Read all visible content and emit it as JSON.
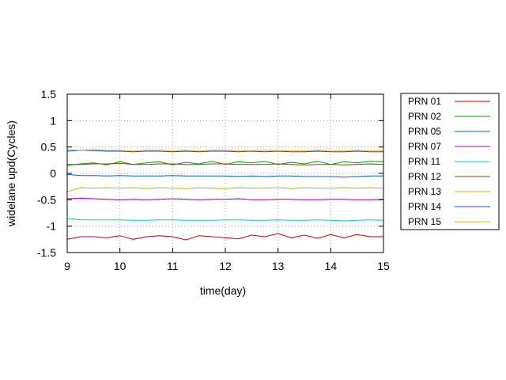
{
  "chart_data": {
    "type": "line",
    "title": "",
    "xlabel": "time(day)",
    "ylabel": "widelane upd(Cycles)",
    "xlim": [
      9,
      15
    ],
    "ylim": [
      -1.5,
      1.5
    ],
    "x_ticks": [
      "9",
      "10",
      "11",
      "12",
      "13",
      "14",
      "15"
    ],
    "y_ticks": [
      "1.5",
      "1",
      "0.5",
      "0",
      "-0.5",
      "-1",
      "-1.5"
    ],
    "grid": true,
    "legend_position": "outside-right",
    "x": [
      9.0,
      9.25,
      9.5,
      9.75,
      10.0,
      10.25,
      10.5,
      10.75,
      11.0,
      11.25,
      11.5,
      11.75,
      12.0,
      12.25,
      12.5,
      12.75,
      13.0,
      13.25,
      13.5,
      13.75,
      14.0,
      14.25,
      14.5,
      14.75,
      15.0
    ],
    "series": [
      {
        "name": "PRN 01",
        "color": "#cc0000",
        "values": [
          -1.25,
          -1.2,
          -1.2,
          -1.22,
          -1.18,
          -1.25,
          -1.2,
          -1.18,
          -1.2,
          -1.26,
          -1.18,
          -1.2,
          -1.22,
          -1.24,
          -1.17,
          -1.2,
          -1.14,
          -1.22,
          -1.17,
          -1.23,
          -1.16,
          -1.22,
          -1.16,
          -1.2,
          -1.2
        ]
      },
      {
        "name": "PRN 02",
        "color": "#00a000",
        "values": [
          0.15,
          0.18,
          0.2,
          0.16,
          0.22,
          0.17,
          0.2,
          0.22,
          0.16,
          0.21,
          0.18,
          0.23,
          0.17,
          0.22,
          0.2,
          0.23,
          0.17,
          0.21,
          0.18,
          0.23,
          0.17,
          0.22,
          0.2,
          0.23,
          0.22
        ]
      },
      {
        "name": "PRN 05",
        "color": "#0060dd",
        "values": [
          -0.02,
          -0.04,
          -0.04,
          -0.05,
          -0.04,
          -0.05,
          -0.05,
          -0.05,
          -0.04,
          -0.05,
          -0.05,
          -0.05,
          -0.05,
          -0.06,
          -0.05,
          -0.06,
          -0.05,
          -0.05,
          -0.06,
          -0.06,
          -0.06,
          -0.07,
          -0.06,
          -0.05,
          -0.05
        ]
      },
      {
        "name": "PRN 07",
        "color": "#a000c0",
        "values": [
          -0.48,
          -0.47,
          -0.48,
          -0.49,
          -0.5,
          -0.49,
          -0.5,
          -0.49,
          -0.48,
          -0.49,
          -0.5,
          -0.49,
          -0.49,
          -0.48,
          -0.5,
          -0.5,
          -0.49,
          -0.49,
          -0.5,
          -0.5,
          -0.49,
          -0.49,
          -0.5,
          -0.5,
          -0.49
        ]
      },
      {
        "name": "PRN 11",
        "color": "#00cccc",
        "values": [
          -0.85,
          -0.88,
          -0.88,
          -0.88,
          -0.88,
          -0.89,
          -0.89,
          -0.88,
          -0.88,
          -0.89,
          -0.89,
          -0.89,
          -0.88,
          -0.88,
          -0.89,
          -0.89,
          -0.88,
          -0.89,
          -0.89,
          -0.88,
          -0.89,
          -0.9,
          -0.89,
          -0.88,
          -0.89
        ]
      },
      {
        "name": "PRN 12",
        "color": "#a04000",
        "values": [
          0.17,
          0.17,
          0.18,
          0.18,
          0.19,
          0.17,
          0.17,
          0.18,
          0.18,
          0.17,
          0.17,
          0.18,
          0.18,
          0.17,
          0.17,
          0.17,
          0.18,
          0.17,
          0.16,
          0.17,
          0.17,
          0.16,
          0.17,
          0.18,
          0.17
        ]
      },
      {
        "name": "PRN 13",
        "color": "#bbbb00",
        "values": [
          -0.35,
          -0.27,
          -0.28,
          -0.27,
          -0.28,
          -0.27,
          -0.29,
          -0.27,
          -0.28,
          -0.29,
          -0.27,
          -0.28,
          -0.29,
          -0.27,
          -0.28,
          -0.28,
          -0.27,
          -0.29,
          -0.27,
          -0.28,
          -0.28,
          -0.27,
          -0.28,
          -0.27,
          -0.28
        ]
      },
      {
        "name": "PRN 14",
        "color": "#1050c0",
        "values": [
          0.42,
          0.44,
          0.43,
          0.42,
          0.42,
          0.41,
          0.42,
          0.42,
          0.41,
          0.42,
          0.41,
          0.42,
          0.42,
          0.41,
          0.42,
          0.41,
          0.42,
          0.41,
          0.41,
          0.42,
          0.41,
          0.41,
          0.42,
          0.41,
          0.41
        ]
      },
      {
        "name": "PRN 15",
        "color": "#ffaa00",
        "values": [
          0.45,
          0.44,
          0.45,
          0.44,
          0.44,
          0.43,
          0.44,
          0.44,
          0.43,
          0.44,
          0.43,
          0.44,
          0.44,
          0.43,
          0.43,
          0.44,
          0.43,
          0.43,
          0.43,
          0.44,
          0.43,
          0.43,
          0.44,
          0.43,
          0.43
        ]
      }
    ]
  }
}
